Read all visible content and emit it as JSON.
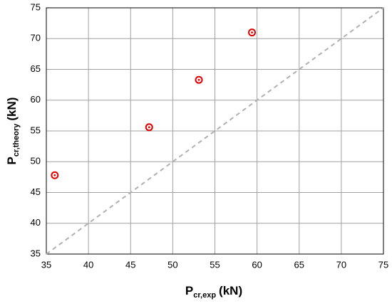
{
  "chart_data": {
    "type": "scatter",
    "x_label": {
      "base": "P",
      "sub": "cr,exp",
      "unit": "(kN)"
    },
    "y_label": {
      "base": "P",
      "sub": "cr,theory",
      "unit": "(kN)"
    },
    "x": [
      36,
      47.2,
      53.1,
      59.4
    ],
    "values": [
      47.8,
      55.6,
      63.3,
      71.0
    ],
    "color": "#e00000",
    "xlim": [
      35,
      75
    ],
    "ylim": [
      35,
      75
    ],
    "xticks": [
      35,
      40,
      45,
      50,
      55,
      60,
      65,
      70,
      75
    ],
    "yticks": [
      35,
      40,
      45,
      50,
      55,
      60,
      65,
      70,
      75
    ],
    "grid": true,
    "diagonal": true
  }
}
